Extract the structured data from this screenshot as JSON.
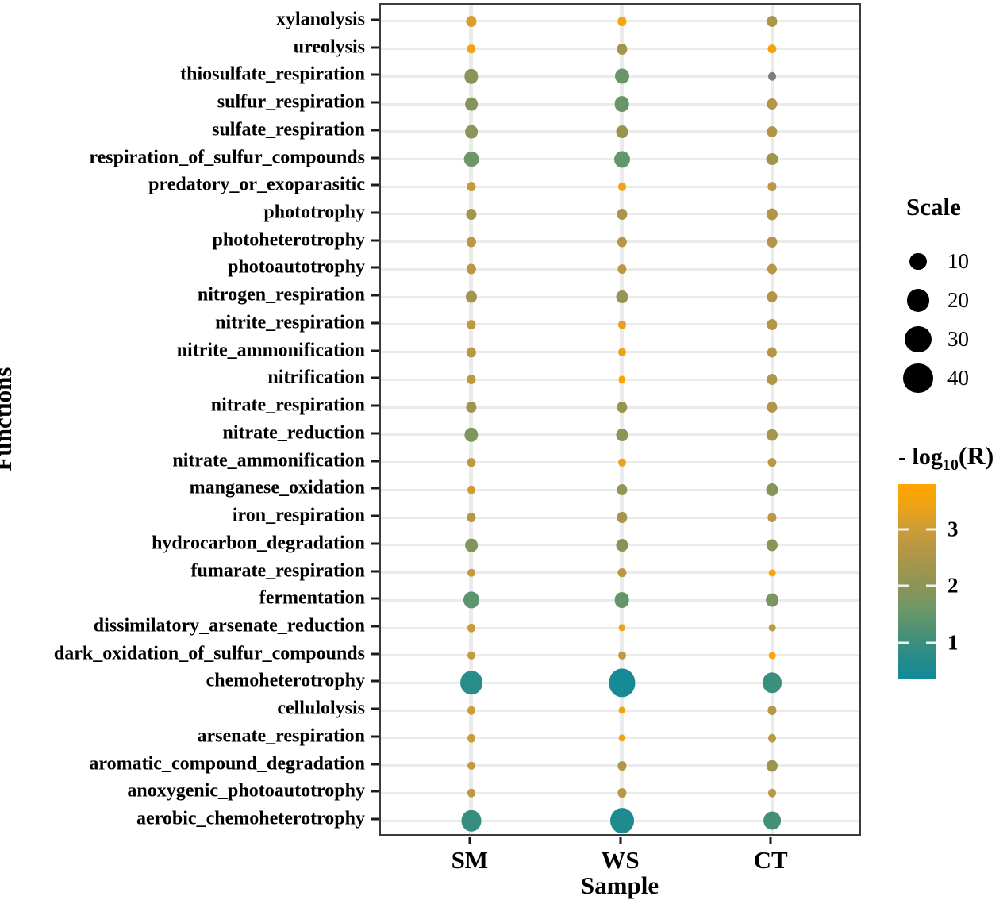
{
  "chart_data": {
    "type": "scatter",
    "subtype": "bubble-matrix",
    "title": "",
    "xlabel": "Sample",
    "ylabel": "Functions",
    "samples": [
      "SM",
      "WS",
      "CT"
    ],
    "functions": [
      "xylanolysis",
      "ureolysis",
      "thiosulfate_respiration",
      "sulfur_respiration",
      "sulfate_respiration",
      "respiration_of_sulfur_compounds",
      "predatory_or_exoparasitic",
      "phototrophy",
      "photoheterotrophy",
      "photoautotrophy",
      "nitrogen_respiration",
      "nitrite_respiration",
      "nitrite_ammonification",
      "nitrification",
      "nitrate_respiration",
      "nitrate_reduction",
      "nitrate_ammonification",
      "manganese_oxidation",
      "iron_respiration",
      "hydrocarbon_degradation",
      "fumarate_respiration",
      "fermentation",
      "dissimilatory_arsenate_reduction",
      "dark_oxidation_of_sulfur_compounds",
      "chemoheterotrophy",
      "cellulolysis",
      "arsenate_respiration",
      "aromatic_compound_degradation",
      "anoxygenic_photoautotrophy",
      "aerobic_chemoheterotrophy"
    ],
    "scale": [
      [
        7,
        5,
        7
      ],
      [
        5,
        7,
        5
      ],
      [
        12,
        13,
        4
      ],
      [
        10,
        14,
        7
      ],
      [
        10,
        9,
        7
      ],
      [
        14,
        16,
        9
      ],
      [
        5,
        4,
        5
      ],
      [
        7,
        7,
        8
      ],
      [
        6,
        6,
        7
      ],
      [
        6,
        5,
        6
      ],
      [
        8,
        9,
        7
      ],
      [
        5,
        4,
        7
      ],
      [
        6,
        4,
        6
      ],
      [
        5,
        3,
        7
      ],
      [
        7,
        7,
        7
      ],
      [
        12,
        9,
        8
      ],
      [
        5,
        4,
        5
      ],
      [
        4,
        7,
        9
      ],
      [
        5,
        7,
        5
      ],
      [
        10,
        9,
        8
      ],
      [
        4,
        5,
        3
      ],
      [
        16,
        14,
        10
      ],
      [
        4,
        3,
        3
      ],
      [
        4,
        4,
        3
      ],
      [
        31,
        44,
        23
      ],
      [
        4,
        3,
        5
      ],
      [
        4,
        3,
        4
      ],
      [
        4,
        5,
        8
      ],
      [
        4,
        5,
        4
      ],
      [
        25,
        36,
        19
      ]
    ],
    "log10_r": [
      [
        3.15,
        3.6,
        2.5
      ],
      [
        3.4,
        2.35,
        3.55
      ],
      [
        1.95,
        1.55,
        null
      ],
      [
        1.85,
        1.55,
        2.6
      ],
      [
        2.0,
        2.2,
        2.6
      ],
      [
        1.6,
        1.5,
        2.3
      ],
      [
        2.85,
        3.45,
        2.75
      ],
      [
        2.4,
        2.5,
        2.55
      ],
      [
        2.7,
        2.65,
        2.6
      ],
      [
        2.7,
        2.75,
        2.65
      ],
      [
        2.35,
        2.15,
        2.6
      ],
      [
        2.8,
        3.3,
        2.6
      ],
      [
        2.7,
        3.4,
        2.65
      ],
      [
        2.8,
        3.7,
        2.55
      ],
      [
        2.3,
        2.2,
        2.55
      ],
      [
        1.8,
        2.0,
        2.4
      ],
      [
        2.8,
        3.35,
        2.7
      ],
      [
        3.05,
        2.1,
        1.9
      ],
      [
        2.7,
        2.4,
        2.75
      ],
      [
        1.85,
        1.9,
        1.95
      ],
      [
        2.85,
        2.7,
        3.65
      ],
      [
        1.4,
        1.5,
        1.75
      ],
      [
        2.9,
        3.4,
        2.75
      ],
      [
        2.85,
        2.8,
        3.7
      ],
      [
        0.75,
        0.45,
        1.0
      ],
      [
        3.0,
        3.4,
        2.65
      ],
      [
        3.0,
        3.4,
        2.75
      ],
      [
        2.85,
        2.6,
        2.25
      ],
      [
        2.8,
        2.7,
        2.7
      ],
      [
        0.95,
        0.6,
        1.1
      ]
    ],
    "na_color": "#7d7d7d",
    "size_legend": {
      "title": "Scale",
      "values": [
        10,
        20,
        30,
        40
      ],
      "key_color": "#000000"
    },
    "color_legend": {
      "title_prefix": "- log",
      "title_sub": "10",
      "title_suffix": "(R)",
      "ticks": [
        3,
        2,
        1
      ],
      "domain": [
        0.35,
        3.8
      ],
      "stops": [
        {
          "v": 0.35,
          "c": "#13899b"
        },
        {
          "v": 0.7,
          "c": "#248b8a"
        },
        {
          "v": 1.0,
          "c": "#3a8f7d"
        },
        {
          "v": 1.3,
          "c": "#559372"
        },
        {
          "v": 1.6,
          "c": "#6d9767"
        },
        {
          "v": 1.9,
          "c": "#85955a"
        },
        {
          "v": 2.2,
          "c": "#999551"
        },
        {
          "v": 2.5,
          "c": "#ac954a"
        },
        {
          "v": 2.8,
          "c": "#bf9941"
        },
        {
          "v": 3.1,
          "c": "#d49e30"
        },
        {
          "v": 3.4,
          "c": "#eda315"
        },
        {
          "v": 3.75,
          "c": "#ffa400"
        }
      ]
    },
    "grid_color": "#ebebeb",
    "panel_border_color": "#3c3c3c",
    "tick_color": "#1a1a1a"
  }
}
